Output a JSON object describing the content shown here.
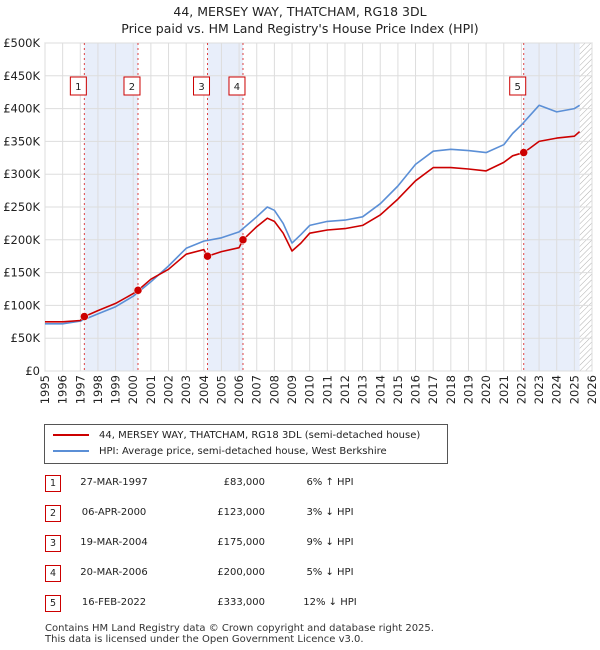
{
  "header": {
    "title": "44, MERSEY WAY, THATCHAM, RG18 3DL",
    "subtitle": "Price paid vs. HM Land Registry's House Price Index (HPI)"
  },
  "chart_data": {
    "type": "line",
    "title": "44, MERSEY WAY, THATCHAM, RG18 3DL",
    "subtitle": "Price paid vs. HM Land Registry's House Price Index (HPI)",
    "xlabel": "",
    "ylabel": "",
    "xlim": [
      1995,
      2026
    ],
    "ylim": [
      0,
      500000
    ],
    "y_ticks": [
      {
        "value": 0,
        "label": "£0"
      },
      {
        "value": 50000,
        "label": "£50K"
      },
      {
        "value": 100000,
        "label": "£100K"
      },
      {
        "value": 150000,
        "label": "£150K"
      },
      {
        "value": 200000,
        "label": "£200K"
      },
      {
        "value": 250000,
        "label": "£250K"
      },
      {
        "value": 300000,
        "label": "£300K"
      },
      {
        "value": 350000,
        "label": "£350K"
      },
      {
        "value": 400000,
        "label": "£400K"
      },
      {
        "value": 450000,
        "label": "£450K"
      },
      {
        "value": 500000,
        "label": "£500K"
      }
    ],
    "x_ticks": [
      "1995",
      "1996",
      "1997",
      "1998",
      "1999",
      "2000",
      "2001",
      "2002",
      "2003",
      "2004",
      "2005",
      "2006",
      "2007",
      "2008",
      "2009",
      "2010",
      "2011",
      "2012",
      "2013",
      "2014",
      "2015",
      "2016",
      "2017",
      "2018",
      "2019",
      "2020",
      "2021",
      "2022",
      "2023",
      "2024",
      "2025",
      "2026"
    ],
    "grid": true,
    "series": [
      {
        "name": "44, MERSEY WAY, THATCHAM, RG18 3DL (semi-detached house)",
        "color": "#cc0000",
        "x": [
          1995,
          1996,
          1997,
          1997.23,
          1998,
          1999,
          2000,
          2000.27,
          2001,
          2002,
          2003,
          2004,
          2004.21,
          2005,
          2006,
          2006.22,
          2007,
          2007.6,
          2008,
          2008.5,
          2009,
          2009.5,
          2010,
          2011,
          2012,
          2013,
          2014,
          2015,
          2016,
          2017,
          2018,
          2019,
          2020,
          2021,
          2021.5,
          2022,
          2022.13,
          2022.5,
          2023,
          2024,
          2025,
          2025.3
        ],
        "y": [
          75000,
          75000,
          77000,
          83000,
          92000,
          103000,
          118000,
          123000,
          140000,
          155000,
          178000,
          185000,
          175000,
          182000,
          188000,
          200000,
          220000,
          233000,
          228000,
          210000,
          183000,
          195000,
          210000,
          215000,
          217000,
          222000,
          238000,
          262000,
          290000,
          310000,
          310000,
          308000,
          305000,
          318000,
          328000,
          332000,
          333000,
          340000,
          350000,
          355000,
          358000,
          365000
        ]
      },
      {
        "name": "HPI: Average price, semi-detached house, West Berkshire",
        "color": "#5b8fd6",
        "x": [
          1995,
          1996,
          1997,
          1998,
          1999,
          2000,
          2001,
          2002,
          2003,
          2004,
          2005,
          2006,
          2007,
          2007.6,
          2008,
          2008.5,
          2009,
          2009.5,
          2010,
          2011,
          2012,
          2013,
          2014,
          2015,
          2016,
          2017,
          2018,
          2019,
          2020,
          2021,
          2021.5,
          2022,
          2022.5,
          2023,
          2024,
          2025,
          2025.3
        ],
        "y": [
          72000,
          72000,
          76000,
          87000,
          98000,
          114000,
          136000,
          160000,
          187000,
          198000,
          203000,
          212000,
          235000,
          250000,
          245000,
          225000,
          195000,
          208000,
          222000,
          228000,
          230000,
          235000,
          255000,
          282000,
          315000,
          335000,
          338000,
          336000,
          333000,
          345000,
          362000,
          375000,
          390000,
          405000,
          395000,
          400000,
          405000
        ]
      }
    ],
    "sales": [
      {
        "num": "1",
        "x": 1997.23,
        "y": 83000
      },
      {
        "num": "2",
        "x": 2000.27,
        "y": 123000
      },
      {
        "num": "3",
        "x": 2004.21,
        "y": 175000
      },
      {
        "num": "4",
        "x": 2006.22,
        "y": 200000
      },
      {
        "num": "5",
        "x": 2022.13,
        "y": 333000
      }
    ],
    "shaded_ranges": [
      [
        1997.23,
        2000.27
      ],
      [
        2004.21,
        2006.22
      ],
      [
        2022.13,
        2025.3
      ]
    ],
    "forecast_start": 2025.3,
    "legend_position": "below"
  },
  "legend": {
    "items": [
      {
        "label": "44, MERSEY WAY, THATCHAM, RG18 3DL (semi-detached house)",
        "color": "#cc0000"
      },
      {
        "label": "HPI: Average price, semi-detached house, West Berkshire",
        "color": "#5b8fd6"
      }
    ]
  },
  "table": {
    "rows": [
      {
        "num": "1",
        "date": "27-MAR-1997",
        "price": "£83,000",
        "delta": "6% ↑ HPI"
      },
      {
        "num": "2",
        "date": "06-APR-2000",
        "price": "£123,000",
        "delta": "3% ↓ HPI"
      },
      {
        "num": "3",
        "date": "19-MAR-2004",
        "price": "£175,000",
        "delta": "9% ↓ HPI"
      },
      {
        "num": "4",
        "date": "20-MAR-2006",
        "price": "£200,000",
        "delta": "5% ↓ HPI"
      },
      {
        "num": "5",
        "date": "16-FEB-2022",
        "price": "£333,000",
        "delta": "12% ↓ HPI"
      }
    ]
  },
  "footer": {
    "line1": "Contains HM Land Registry data © Crown copyright and database right 2025.",
    "line2": "This data is licensed under the Open Government Licence v3.0."
  }
}
